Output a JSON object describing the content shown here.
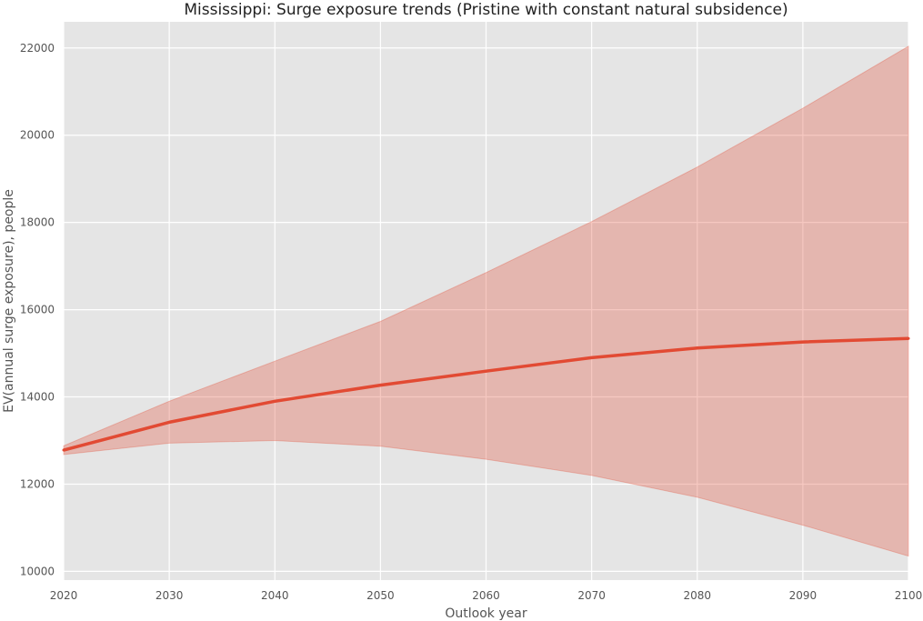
{
  "chart_data": {
    "type": "area",
    "title": "Mississippi: Surge exposure trends (Pristine with constant natural subsidence)",
    "xlabel": "Outlook year",
    "ylabel": "EV(annual surge exposure), people",
    "xlim": [
      2020,
      2100
    ],
    "ylim": [
      9800,
      22600
    ],
    "x_ticks": [
      2020,
      2030,
      2040,
      2050,
      2060,
      2070,
      2080,
      2090,
      2100
    ],
    "y_ticks": [
      10000,
      12000,
      14000,
      16000,
      18000,
      20000,
      22000
    ],
    "grid": true,
    "x": [
      2020,
      2030,
      2040,
      2050,
      2060,
      2070,
      2080,
      2090,
      2100
    ],
    "series": [
      {
        "role": "mean",
        "values": [
          12780,
          13420,
          13900,
          14270,
          14590,
          14900,
          15120,
          15260,
          15340
        ]
      },
      {
        "role": "band-upper",
        "values": [
          12880,
          13900,
          14820,
          15730,
          16850,
          18020,
          19270,
          20620,
          22040
        ]
      },
      {
        "role": "band-lower",
        "values": [
          12680,
          12940,
          13000,
          12870,
          12570,
          12200,
          11700,
          11060,
          10350
        ]
      }
    ],
    "colors": {
      "line": "#e24a33",
      "band": "#e24a33",
      "plot_background": "#e5e5e5",
      "grid": "#ffffff"
    }
  }
}
